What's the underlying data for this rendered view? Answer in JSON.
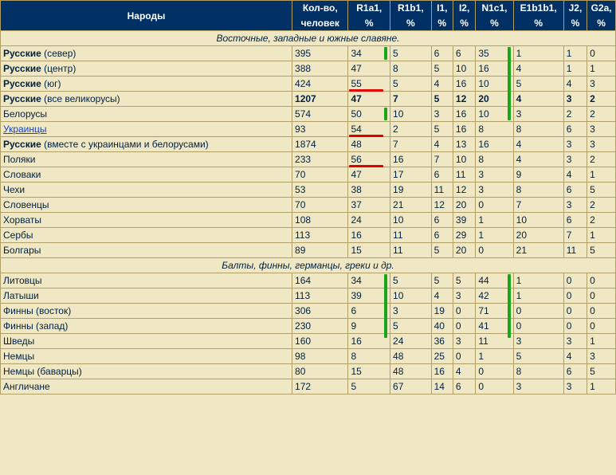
{
  "columns": {
    "c0": "Народы",
    "c1a": "Кол-во,",
    "c1b": "человек",
    "c2a": "R1a1,",
    "c2b": "%",
    "c3a": "R1b1,",
    "c3b": "%",
    "c4a": "I1,",
    "c4b": "%",
    "c5a": "I2,",
    "c5b": "%",
    "c6a": "N1c1,",
    "c6b": "%",
    "c7a": "E1b1b1,",
    "c7b": "%",
    "c8a": "J2,",
    "c8b": "%",
    "c9a": "G2a,",
    "c9b": "%"
  },
  "sections": [
    {
      "title": "Восточные, западные и южные славяне.",
      "rows": [
        {
          "name_bold": "Русские",
          "name_sub": " (север)",
          "count": "395",
          "r1a1": "34",
          "r1b1": "5",
          "i1": "6",
          "i2": "6",
          "n1c1": "35",
          "e": "1",
          "j2": "1",
          "g2a": "0",
          "mark_r1a1": "green",
          "mark_n1c1": "green-long"
        },
        {
          "name_bold": "Русские",
          "name_sub": " (центр)",
          "count": "388",
          "r1a1": "47",
          "r1b1": "8",
          "i1": "5",
          "i2": "10",
          "n1c1": "16",
          "e": "4",
          "j2": "1",
          "g2a": "1"
        },
        {
          "name_bold": "Русские",
          "name_sub": " (юг)",
          "count": "424",
          "r1a1": "55",
          "r1b1": "5",
          "i1": "4",
          "i2": "16",
          "n1c1": "10",
          "e": "5",
          "j2": "4",
          "g2a": "3",
          "mark_r1a1": "red"
        },
        {
          "name_bold": "Русские",
          "name_sub": " (все великорусы)",
          "count": "1207",
          "r1a1": "47",
          "r1b1": "7",
          "i1": "5",
          "i2": "12",
          "n1c1": "20",
          "e": "4",
          "j2": "3",
          "g2a": "2",
          "bold": true
        },
        {
          "name_plain": "Белорусы",
          "count": "574",
          "r1a1": "50",
          "r1b1": "10",
          "i1": "3",
          "i2": "16",
          "n1c1": "10",
          "e": "3",
          "j2": "2",
          "g2a": "2",
          "mark_r1a1": "green",
          "mark_n1c1": "green"
        },
        {
          "name_link": "Украинцы",
          "count": "93",
          "r1a1": "54",
          "r1b1": "2",
          "i1": "5",
          "i2": "16",
          "n1c1": "8",
          "e": "8",
          "j2": "6",
          "g2a": "3",
          "mark_r1a1": "red"
        },
        {
          "name_bold": "Русские",
          "name_sub": " (вместе с украинцами и белорусами)",
          "count": "1874",
          "r1a1": "48",
          "r1b1": "7",
          "i1": "4",
          "i2": "13",
          "n1c1": "16",
          "e": "4",
          "j2": "3",
          "g2a": "3"
        },
        {
          "name_plain": "Поляки",
          "count": "233",
          "r1a1": "56",
          "r1b1": "16",
          "i1": "7",
          "i2": "10",
          "n1c1": "8",
          "e": "4",
          "j2": "3",
          "g2a": "2",
          "mark_r1a1": "red"
        },
        {
          "name_plain": "Словаки",
          "count": "70",
          "r1a1": "47",
          "r1b1": "17",
          "i1": "6",
          "i2": "11",
          "n1c1": "3",
          "e": "9",
          "j2": "4",
          "g2a": "1"
        },
        {
          "name_plain": "Чехи",
          "count": "53",
          "r1a1": "38",
          "r1b1": "19",
          "i1": "11",
          "i2": "12",
          "n1c1": "3",
          "e": "8",
          "j2": "6",
          "g2a": "5"
        },
        {
          "name_plain": "Словенцы",
          "count": "70",
          "r1a1": "37",
          "r1b1": "21",
          "i1": "12",
          "i2": "20",
          "n1c1": "0",
          "e": "7",
          "j2": "3",
          "g2a": "2"
        },
        {
          "name_plain": "Хорваты",
          "count": "108",
          "r1a1": "24",
          "r1b1": "10",
          "i1": "6",
          "i2": "39",
          "n1c1": "1",
          "e": "10",
          "j2": "6",
          "g2a": "2"
        },
        {
          "name_plain": "Сербы",
          "count": "113",
          "r1a1": "16",
          "r1b1": "11",
          "i1": "6",
          "i2": "29",
          "n1c1": "1",
          "e": "20",
          "j2": "7",
          "g2a": "1"
        },
        {
          "name_plain": "Болгары",
          "count": "89",
          "r1a1": "15",
          "r1b1": "11",
          "i1": "5",
          "i2": "20",
          "n1c1": "0",
          "e": "21",
          "j2": "11",
          "g2a": "5"
        }
      ]
    },
    {
      "title": "Балты, финны, германцы, греки и др.",
      "rows": [
        {
          "name_plain": "Литовцы",
          "count": "164",
          "r1a1": "34",
          "r1b1": "5",
          "i1": "5",
          "i2": "5",
          "n1c1": "44",
          "e": "1",
          "j2": "0",
          "g2a": "0",
          "mark_r1a1": "green-long",
          "mark_n1c1": "green-long"
        },
        {
          "name_plain": "Латыши",
          "count": "113",
          "r1a1": "39",
          "r1b1": "10",
          "i1": "4",
          "i2": "3",
          "n1c1": "42",
          "e": "1",
          "j2": "0",
          "g2a": "0"
        },
        {
          "name_plain": "Финны (восток)",
          "count": "306",
          "r1a1": "6",
          "r1b1": "3",
          "i1": "19",
          "i2": "0",
          "n1c1": "71",
          "e": "0",
          "j2": "0",
          "g2a": "0"
        },
        {
          "name_plain": "Финны (запад)",
          "count": "230",
          "r1a1": "9",
          "r1b1": "5",
          "i1": "40",
          "i2": "0",
          "n1c1": "41",
          "e": "0",
          "j2": "0",
          "g2a": "0"
        },
        {
          "name_plain": "Шведы",
          "count": "160",
          "r1a1": "16",
          "r1b1": "24",
          "i1": "36",
          "i2": "3",
          "n1c1": "11",
          "e": "3",
          "j2": "3",
          "g2a": "1"
        },
        {
          "name_plain": "Немцы",
          "count": "98",
          "r1a1": "8",
          "r1b1": "48",
          "i1": "25",
          "i2": "0",
          "n1c1": "1",
          "e": "5",
          "j2": "4",
          "g2a": "3"
        },
        {
          "name_plain": "Немцы (баварцы)",
          "count": "80",
          "r1a1": "15",
          "r1b1": "48",
          "i1": "16",
          "i2": "4",
          "n1c1": "0",
          "e": "8",
          "j2": "6",
          "g2a": "5"
        },
        {
          "name_plain": "Англичане",
          "count": "172",
          "r1a1": "5",
          "r1b1": "67",
          "i1": "14",
          "i2": "6",
          "n1c1": "0",
          "e": "3",
          "j2": "3",
          "g2a": "1"
        }
      ]
    }
  ]
}
